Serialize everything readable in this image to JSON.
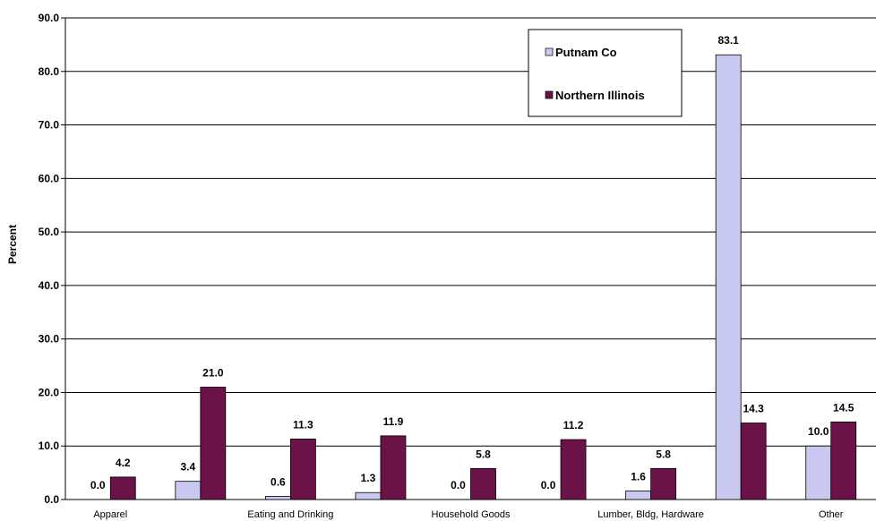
{
  "chart_data": {
    "type": "bar",
    "title": "",
    "xlabel": "",
    "ylabel": "Percent",
    "ylim": [
      0,
      90
    ],
    "yticks": [
      "0.0",
      "10.0",
      "20.0",
      "30.0",
      "40.0",
      "50.0",
      "60.0",
      "70.0",
      "80.0",
      "90.0"
    ],
    "grid": true,
    "legend_position": "top-right",
    "categories": [
      "Apparel",
      "",
      "Eating and Drinking",
      "",
      "Household Goods",
      "",
      "Lumber, Bldg, Hardware",
      "",
      "Other"
    ],
    "series": [
      {
        "name": "Putnam Co",
        "color": "#c8c8f0",
        "values": [
          0.0,
          3.4,
          0.6,
          1.3,
          0.0,
          0.0,
          1.6,
          83.1,
          10.0
        ],
        "labels": [
          "0.0",
          "3.4",
          "0.6",
          "1.3",
          "0.0",
          "0.0",
          "1.6",
          "83.1",
          "10.0"
        ]
      },
      {
        "name": "Northern Illinois",
        "color": "#6b1248",
        "values": [
          4.2,
          21.0,
          11.3,
          11.9,
          5.8,
          11.2,
          5.8,
          14.3,
          14.5
        ],
        "labels": [
          "4.2",
          "21.0",
          "11.3",
          "11.9",
          "5.8",
          "11.2",
          "5.8",
          "14.3",
          "14.5"
        ]
      }
    ]
  }
}
